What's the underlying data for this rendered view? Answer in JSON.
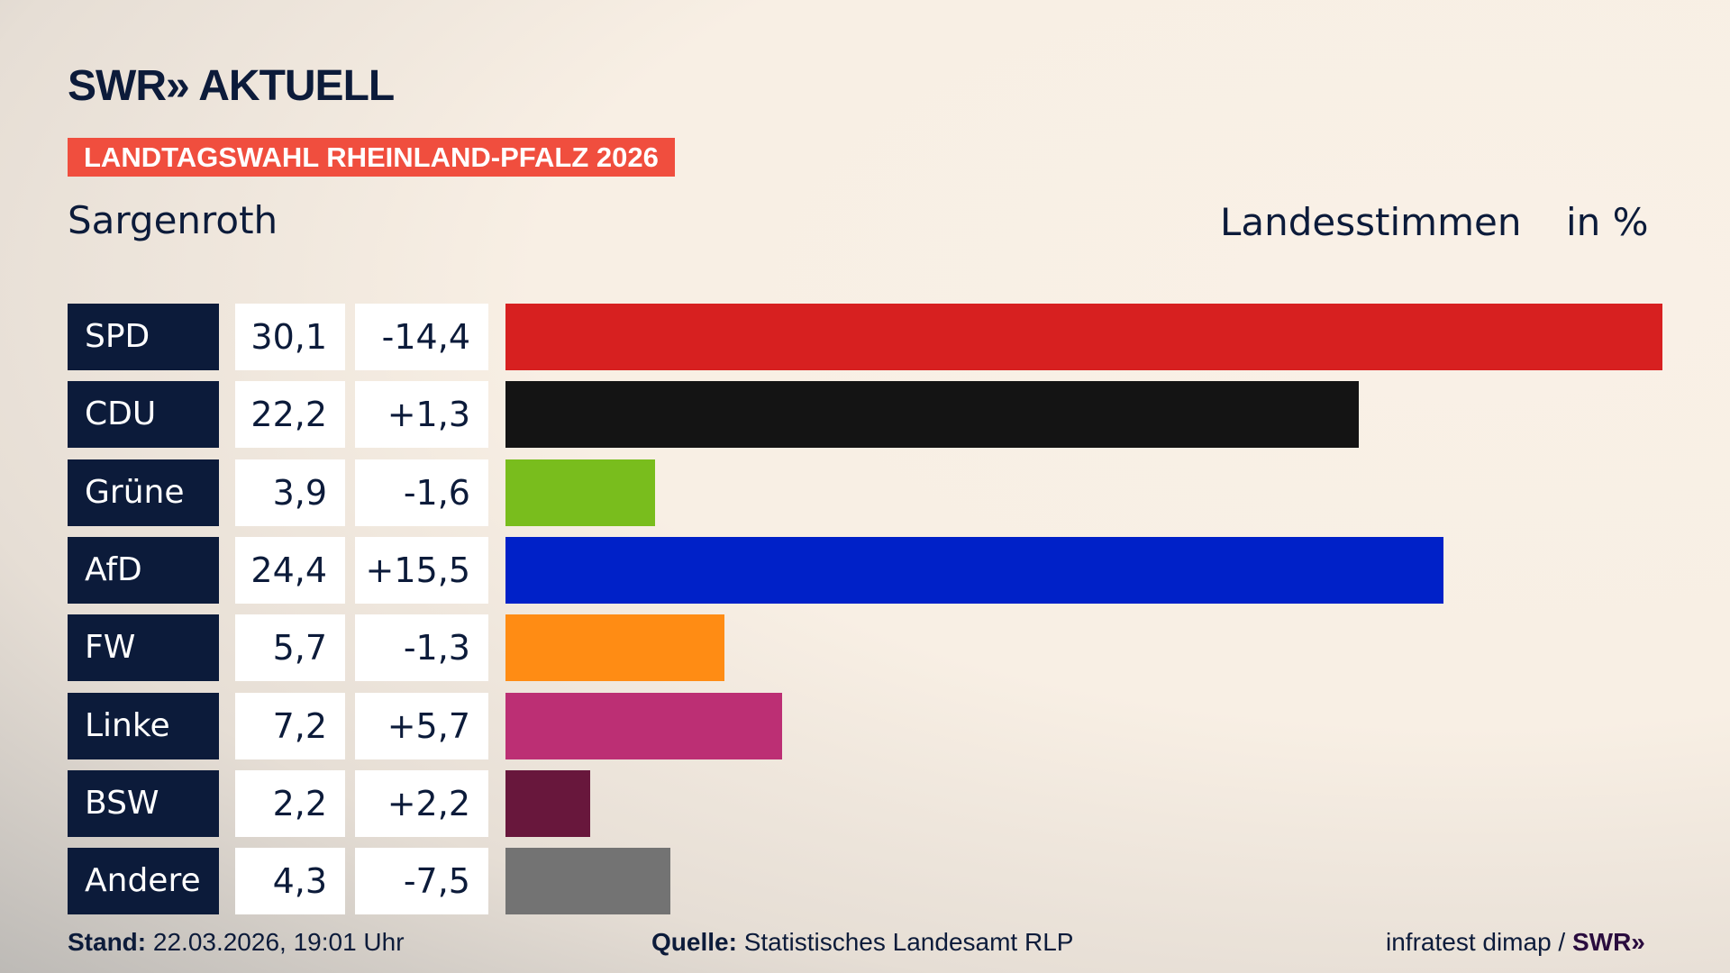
{
  "header": {
    "logo": "SWR» AKTUELL",
    "banner": "LANDTAGSWAHL RHEINLAND-PFALZ 2026",
    "place": "Sargenroth",
    "metric": "Landesstimmen",
    "unit": "in %"
  },
  "chart_data": {
    "type": "bar",
    "orientation": "horizontal",
    "categories": [
      "SPD",
      "CDU",
      "Grüne",
      "AfD",
      "FW",
      "Linke",
      "BSW",
      "Andere"
    ],
    "values": [
      30.1,
      22.2,
      3.9,
      24.4,
      5.7,
      7.2,
      2.2,
      4.3
    ],
    "values_label": [
      "30,1",
      "22,2",
      "3,9",
      "24,4",
      "5,7",
      "7,2",
      "2,2",
      "4,3"
    ],
    "diff_label": [
      "-14,4",
      "+1,3",
      "-1,6",
      "+15,5",
      "-1,3",
      "+5,7",
      "+2,2",
      "-7,5"
    ],
    "diff": [
      -14.4,
      1.3,
      -1.6,
      15.5,
      -1.3,
      5.7,
      2.2,
      -7.5
    ],
    "colors": [
      "#d72020",
      "#141414",
      "#79bd1d",
      "#0021c8",
      "#ff8c14",
      "#bc2f74",
      "#68173c",
      "#737373"
    ],
    "xlim": [
      0,
      30.1
    ]
  },
  "footer": {
    "stand_label": "Stand:",
    "stand": "22.03.2026, 19:01 Uhr",
    "quelle_label": "Quelle:",
    "quelle": "Statistisches Landesamt RLP",
    "credit": "infratest dimap / ",
    "credit_logo": "SWR»"
  }
}
